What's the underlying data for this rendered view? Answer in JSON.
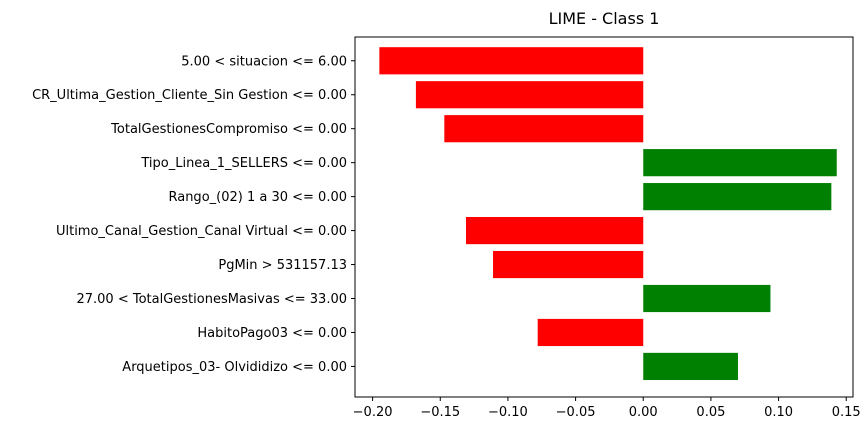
{
  "chart_data": {
    "type": "bar",
    "orientation": "horizontal",
    "title": "LIME - Class 1",
    "xlabel": "",
    "ylabel": "",
    "categories": [
      "5.00 < situacion <= 6.00",
      "CR_Ultima_Gestion_Cliente_Sin Gestion <= 0.00",
      "TotalGestionesCompromiso <= 0.00",
      "Tipo_Linea_1_SELLERS <= 0.00",
      "Rango_(02) 1 a 30 <= 0.00",
      "Ultimo_Canal_Gestion_Canal Virtual <= 0.00",
      "PgMin > 531157.13",
      "27.00 < TotalGestionesMasivas <= 33.00",
      "HabitoPago03 <= 0.00",
      "Arquetipos_03- Olvididizo <= 0.00"
    ],
    "values": [
      -0.195,
      -0.168,
      -0.147,
      0.143,
      0.139,
      -0.131,
      -0.111,
      0.094,
      -0.078,
      0.07
    ],
    "xlim": [
      -0.213,
      0.155
    ],
    "xticks": [
      -0.2,
      -0.15,
      -0.1,
      -0.05,
      0.0,
      0.05,
      0.1,
      0.15
    ],
    "xtick_labels": [
      "−0.20",
      "−0.15",
      "−0.10",
      "−0.05",
      "0.00",
      "0.05",
      "0.10",
      "0.15"
    ],
    "grid": false,
    "legend": "none",
    "colors": {
      "positive": "#008000",
      "negative": "#ff0000",
      "axis": "#000000"
    }
  }
}
